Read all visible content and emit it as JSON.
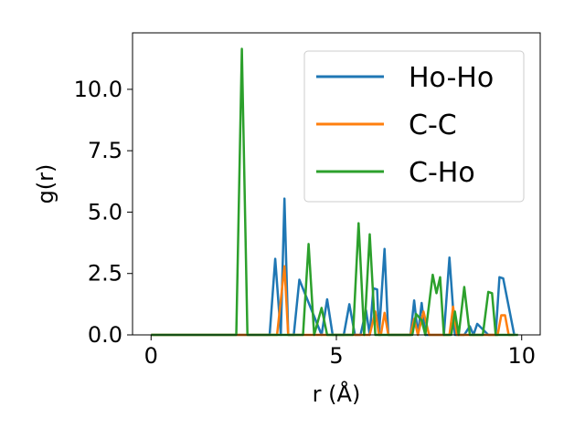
{
  "chart_data": {
    "type": "line",
    "title": "",
    "xlabel": "r (Å)",
    "ylabel": "g(r)",
    "xlim": [
      -0.5,
      10.5
    ],
    "ylim": [
      0,
      12.3
    ],
    "xticks": [
      0,
      5,
      10
    ],
    "xtick_labels": [
      "0",
      "5",
      "10"
    ],
    "yticks": [
      0,
      2.5,
      5,
      7.5,
      10
    ],
    "ytick_labels": [
      "0.0",
      "2.5",
      "5.0",
      "7.5",
      "10.0"
    ],
    "grid": false,
    "legend_position": "upper right",
    "series": [
      {
        "name": "Ho-Ho",
        "color": "#1f77b4",
        "x": [
          0,
          3.2,
          3.35,
          3.5,
          3.6,
          3.7,
          3.85,
          4.0,
          4.6,
          4.75,
          4.9,
          5.1,
          5.2,
          5.35,
          5.5,
          5.65,
          5.8,
          5.9,
          6.0,
          6.1,
          6.15,
          6.3,
          6.4,
          7.0,
          7.1,
          7.2,
          7.3,
          7.4,
          7.5,
          7.9,
          8.05,
          8.2,
          8.45,
          8.6,
          8.7,
          8.8,
          9.1,
          9.3,
          9.4,
          9.5,
          9.8
        ],
        "y": [
          0,
          0,
          3.1,
          0,
          5.55,
          0,
          0,
          2.25,
          0,
          1.45,
          0,
          0,
          0,
          1.25,
          0,
          0,
          1.0,
          0,
          1.9,
          1.85,
          0,
          3.5,
          0,
          0,
          1.4,
          0,
          1.3,
          0,
          0,
          0,
          3.15,
          0,
          0,
          0.35,
          0,
          0.45,
          0,
          0,
          2.35,
          2.3,
          0
        ]
      },
      {
        "name": "C-C",
        "color": "#ff7f0e",
        "x": [
          0,
          3.4,
          3.6,
          3.7,
          5.9,
          6.05,
          6.15,
          6.2,
          6.3,
          6.4,
          7.0,
          7.1,
          7.2,
          7.35,
          7.5,
          8.05,
          8.15,
          8.25,
          9.35,
          9.45,
          9.55,
          9.65,
          9.8
        ],
        "y": [
          0,
          0,
          2.8,
          0,
          0,
          0.95,
          0,
          0,
          0.9,
          0,
          0,
          0.65,
          0,
          0.95,
          0,
          0,
          1.15,
          0,
          0,
          0.8,
          0.8,
          0,
          0
        ]
      },
      {
        "name": "C-Ho",
        "color": "#2ca02c",
        "x": [
          0,
          2.3,
          2.45,
          2.6,
          4.1,
          4.25,
          4.4,
          4.6,
          4.75,
          5.45,
          5.6,
          5.75,
          5.9,
          6.05,
          7.05,
          7.15,
          7.3,
          7.4,
          7.6,
          7.7,
          7.8,
          7.9,
          8.1,
          8.2,
          8.3,
          8.45,
          8.6,
          8.95,
          9.1,
          9.2,
          9.3,
          9.9
        ],
        "y": [
          0,
          0,
          11.65,
          0,
          0,
          3.7,
          0,
          1.1,
          0,
          0,
          4.55,
          0,
          4.1,
          0,
          0,
          0.85,
          0.6,
          0,
          2.45,
          1.7,
          2.35,
          0,
          0,
          0.95,
          0,
          1.95,
          0,
          0,
          1.75,
          1.7,
          0,
          0
        ]
      }
    ]
  }
}
